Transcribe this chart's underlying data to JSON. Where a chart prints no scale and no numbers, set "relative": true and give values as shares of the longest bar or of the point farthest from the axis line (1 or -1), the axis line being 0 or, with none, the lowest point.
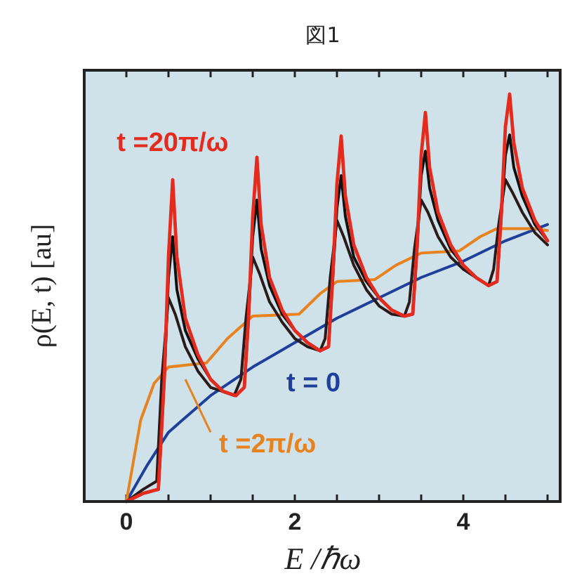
{
  "chart_data": {
    "type": "line",
    "title": "図1",
    "xlabel": "E /ℏω",
    "ylabel": "ρ(E, t) [au]",
    "relative": true,
    "xlim": [
      -0.5,
      5.15
    ],
    "xticks": [
      0,
      {
        "value": 0.5,
        "label": null
      },
      {
        "value": 1,
        "label": null
      },
      {
        "value": 1.5,
        "label": null
      },
      2,
      {
        "value": 2.5,
        "label": null
      },
      {
        "value": 3,
        "label": null
      },
      {
        "value": 3.5,
        "label": null
      },
      4,
      {
        "value": 4.5,
        "label": null
      },
      {
        "value": 5,
        "label": null
      }
    ],
    "series": [
      {
        "name": "t = 0",
        "color": "#1f3f9a",
        "x": [
          0,
          0.25,
          0.5,
          1,
          1.5,
          2,
          2.5,
          3,
          3.5,
          4,
          4.5,
          5
        ],
        "values": [
          0,
          0.09,
          0.17,
          0.26,
          0.33,
          0.39,
          0.45,
          0.5,
          0.55,
          0.59,
          0.64,
          0.68
        ]
      },
      {
        "name": "t =2π/ω",
        "color": "#e8821e",
        "x": [
          0,
          0.17,
          0.33,
          0.5,
          0.95,
          1.2,
          1.5,
          2.05,
          2.3,
          2.5,
          2.95,
          3.2,
          3.5,
          3.95,
          4.2,
          4.4,
          4.85,
          5
        ],
        "values": [
          0,
          0.2,
          0.29,
          0.33,
          0.34,
          0.4,
          0.455,
          0.46,
          0.51,
          0.54,
          0.545,
          0.58,
          0.61,
          0.615,
          0.65,
          0.67,
          0.67,
          0.665
        ]
      },
      {
        "color": "#2a1a1a",
        "x": [
          0,
          0.2,
          0.36,
          0.42,
          0.5,
          0.58,
          0.7,
          0.85,
          1.0,
          1.15,
          1.28,
          1.36,
          1.42,
          1.5,
          1.58,
          1.7,
          1.85,
          2.0,
          2.15,
          2.3,
          2.36,
          2.42,
          2.5,
          2.58,
          2.7,
          2.85,
          3.0,
          3.15,
          3.3,
          3.36,
          3.42,
          3.5,
          3.58,
          3.7,
          3.85,
          4.0,
          4.15,
          4.3,
          4.36,
          4.42,
          4.5,
          4.58,
          4.7,
          4.85,
          5.0
        ],
        "values": [
          0,
          0.03,
          0.05,
          0.3,
          0.5,
          0.46,
          0.38,
          0.32,
          0.28,
          0.27,
          0.26,
          0.3,
          0.45,
          0.6,
          0.56,
          0.49,
          0.44,
          0.4,
          0.38,
          0.37,
          0.4,
          0.55,
          0.69,
          0.65,
          0.58,
          0.52,
          0.48,
          0.46,
          0.455,
          0.49,
          0.62,
          0.74,
          0.71,
          0.65,
          0.6,
          0.57,
          0.55,
          0.53,
          0.57,
          0.68,
          0.79,
          0.76,
          0.71,
          0.66,
          0.63
        ]
      },
      {
        "color": "#111111",
        "x": [
          0,
          0.2,
          0.38,
          0.45,
          0.5,
          0.55,
          0.6,
          0.7,
          0.85,
          1.0,
          1.15,
          1.3,
          1.4,
          1.45,
          1.5,
          1.55,
          1.6,
          1.7,
          1.85,
          2.0,
          2.15,
          2.3,
          2.4,
          2.45,
          2.5,
          2.55,
          2.6,
          2.7,
          2.85,
          3.0,
          3.15,
          3.3,
          3.4,
          3.45,
          3.5,
          3.55,
          3.6,
          3.7,
          3.85,
          4.0,
          4.15,
          4.3,
          4.4,
          4.45,
          4.5,
          4.55,
          4.6,
          4.7,
          4.85,
          5.0
        ],
        "values": [
          0,
          0.02,
          0.03,
          0.3,
          0.55,
          0.65,
          0.52,
          0.42,
          0.35,
          0.3,
          0.27,
          0.26,
          0.28,
          0.45,
          0.65,
          0.74,
          0.62,
          0.53,
          0.46,
          0.42,
          0.39,
          0.37,
          0.38,
          0.55,
          0.72,
          0.8,
          0.7,
          0.6,
          0.54,
          0.5,
          0.47,
          0.455,
          0.46,
          0.62,
          0.8,
          0.86,
          0.77,
          0.69,
          0.62,
          0.58,
          0.55,
          0.53,
          0.54,
          0.7,
          0.85,
          0.9,
          0.82,
          0.75,
          0.68,
          0.64
        ]
      },
      {
        "name": "t =20π/ω",
        "color": "#e52a1e",
        "x": [
          0,
          0.2,
          0.38,
          0.45,
          0.5,
          0.55,
          0.6,
          0.7,
          0.85,
          1.0,
          1.15,
          1.3,
          1.4,
          1.45,
          1.5,
          1.55,
          1.6,
          1.7,
          1.85,
          2.0,
          2.15,
          2.3,
          2.4,
          2.45,
          2.5,
          2.55,
          2.6,
          2.7,
          2.85,
          3.0,
          3.15,
          3.3,
          3.4,
          3.45,
          3.5,
          3.55,
          3.6,
          3.7,
          3.85,
          4.0,
          4.15,
          4.3,
          4.4,
          4.45,
          4.5,
          4.55,
          4.6,
          4.7,
          4.85,
          5.0
        ],
        "values": [
          0,
          0.02,
          0.03,
          0.3,
          0.6,
          0.79,
          0.6,
          0.45,
          0.36,
          0.3,
          0.27,
          0.26,
          0.28,
          0.45,
          0.7,
          0.845,
          0.68,
          0.55,
          0.47,
          0.42,
          0.39,
          0.37,
          0.38,
          0.55,
          0.78,
          0.897,
          0.75,
          0.63,
          0.55,
          0.5,
          0.47,
          0.455,
          0.46,
          0.62,
          0.85,
          0.955,
          0.82,
          0.71,
          0.63,
          0.58,
          0.55,
          0.53,
          0.54,
          0.7,
          0.92,
          1.0,
          0.88,
          0.77,
          0.69,
          0.64
        ]
      }
    ]
  }
}
